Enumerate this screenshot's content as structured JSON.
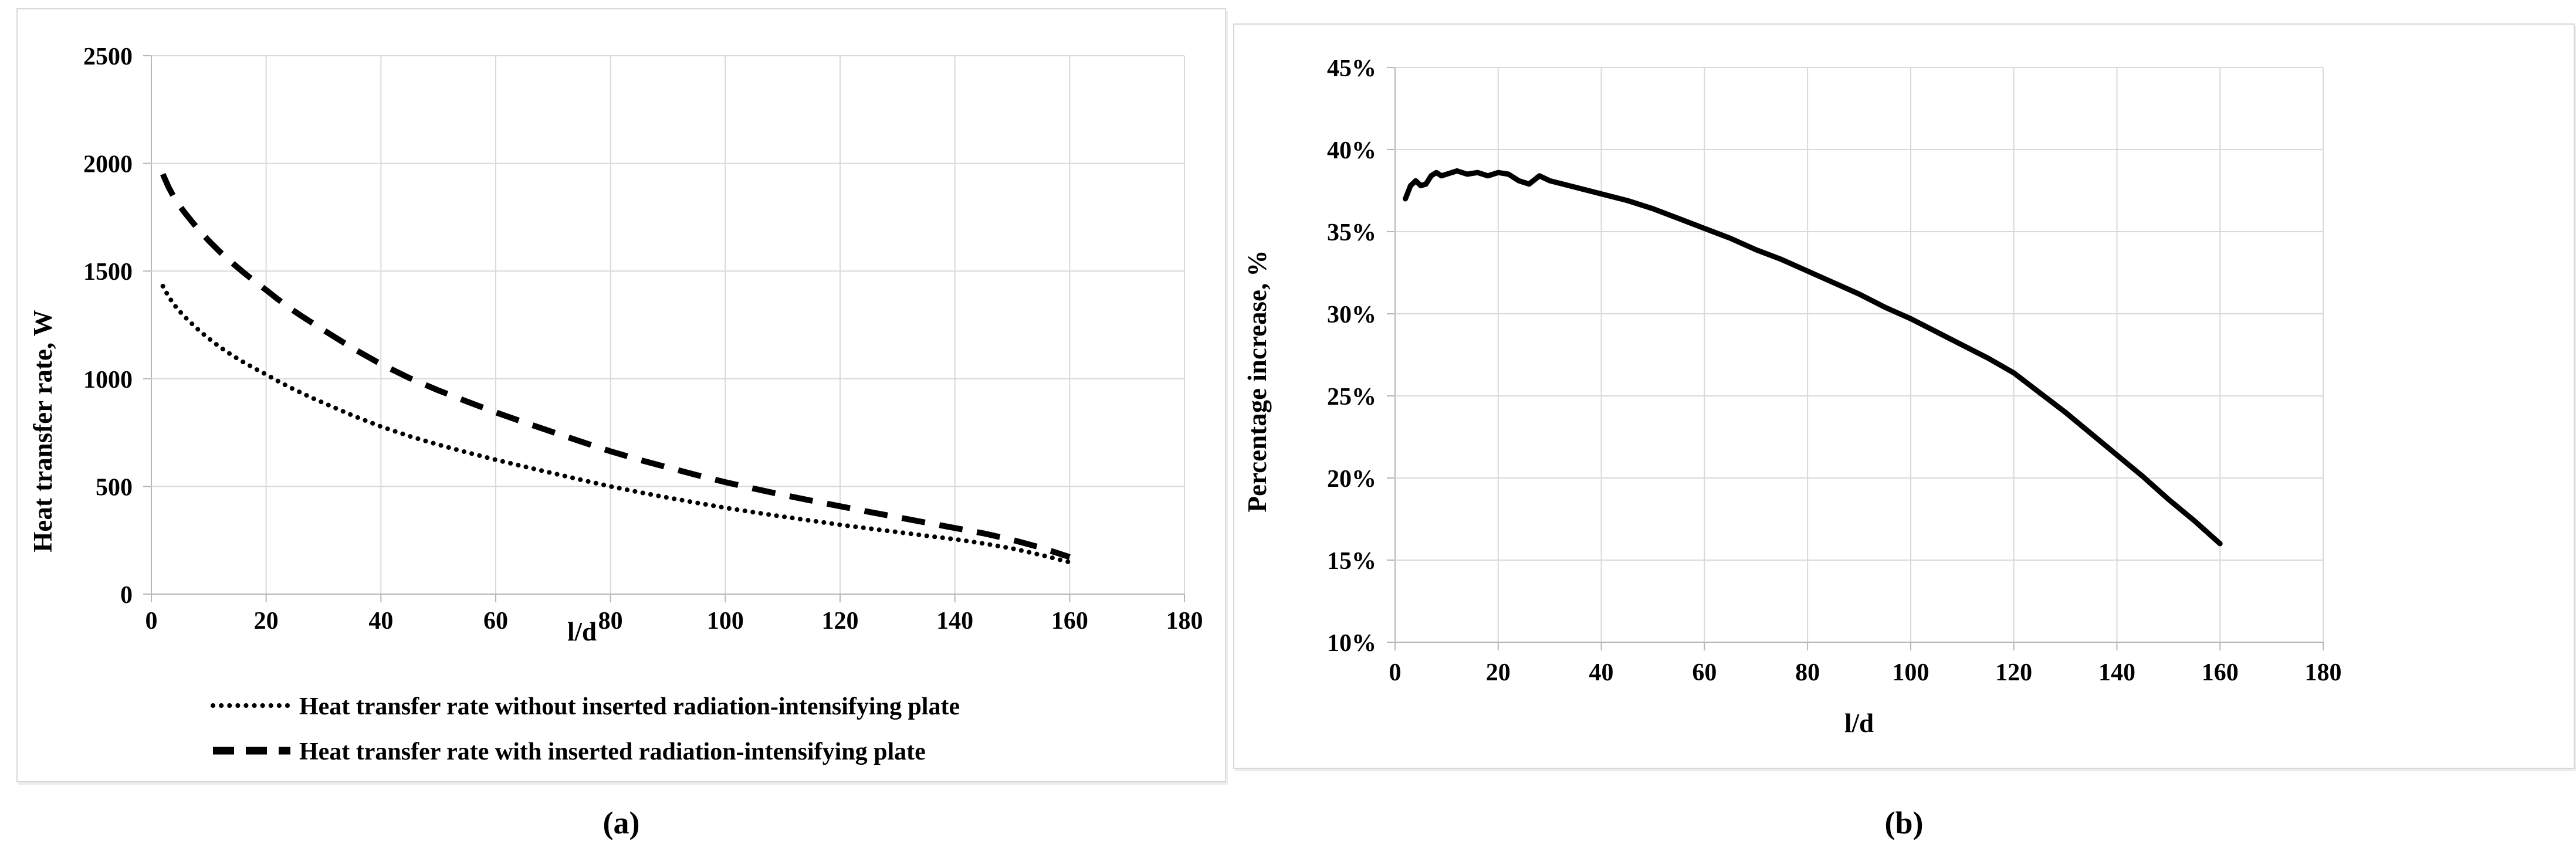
{
  "figure": {
    "background": "#ffffff",
    "panel_border_color": "#d9d9d9",
    "gridline_color": "#d9d9d9",
    "axis_color": "#b7b7b7",
    "text_color": "#000000",
    "series_color": "#000000",
    "caption_a": "(a)",
    "caption_b": "(b)"
  },
  "chart_data": [
    {
      "id": "a",
      "type": "line",
      "title": "",
      "xlabel": "l/d",
      "ylabel": "Heat transfer rate, W",
      "xlim": [
        0,
        180
      ],
      "ylim": [
        0,
        2500
      ],
      "grid": true,
      "legend_position": "bottom",
      "x_ticks": [
        0,
        20,
        40,
        60,
        80,
        100,
        120,
        140,
        160,
        180
      ],
      "x_tick_labels": [
        "0",
        "20",
        "40",
        "60",
        "80",
        "100",
        "120",
        "140",
        "160",
        "180"
      ],
      "y_ticks": [
        0,
        500,
        1000,
        1500,
        2000,
        2500
      ],
      "y_tick_labels": [
        "0",
        "500",
        "1000",
        "1500",
        "2000",
        "2500"
      ],
      "x": [
        2,
        3,
        4,
        5,
        6,
        7,
        8,
        9,
        10,
        12,
        14,
        16,
        18,
        20,
        22,
        24,
        26,
        28,
        30,
        35,
        40,
        45,
        50,
        55,
        60,
        65,
        70,
        75,
        80,
        85,
        90,
        95,
        100,
        105,
        110,
        115,
        120,
        125,
        130,
        135,
        140,
        145,
        150,
        155,
        160
      ],
      "series": [
        {
          "name": "Heat transfer rate without inserted radiation-intensifying plate",
          "line_style": "dotted",
          "color": "#000000",
          "values": [
            1430,
            1382,
            1343,
            1311,
            1283,
            1257,
            1232,
            1209,
            1187,
            1146,
            1110,
            1078,
            1048,
            1020,
            990,
            962,
            936,
            911,
            888,
            830,
            778,
            733,
            694,
            658,
            624,
            592,
            561,
            530,
            500,
            473,
            448,
            424,
            401,
            380,
            360,
            341,
            322,
            305,
            288,
            271,
            255,
            235,
            212,
            182,
            148
          ]
        },
        {
          "name": "Heat transfer rate with inserted radiation-intensifying plate",
          "line_style": "dashed",
          "color": "#000000",
          "values": [
            1950,
            1890,
            1840,
            1800,
            1765,
            1732,
            1700,
            1670,
            1641,
            1588,
            1540,
            1495,
            1452,
            1412,
            1370,
            1330,
            1294,
            1260,
            1226,
            1143,
            1068,
            1003,
            946,
            894,
            844,
            797,
            752,
            707,
            663,
            624,
            588,
            553,
            520,
            490,
            461,
            434,
            408,
            382,
            357,
            332,
            307,
            282,
            252,
            216,
            172
          ]
        }
      ]
    },
    {
      "id": "b",
      "type": "line",
      "title": "",
      "xlabel": "l/d",
      "ylabel": "Percentage increase, %",
      "xlim": [
        0,
        180
      ],
      "ylim": [
        10,
        45
      ],
      "grid": true,
      "legend_position": "none",
      "x_ticks": [
        0,
        20,
        40,
        60,
        80,
        100,
        120,
        140,
        160,
        180
      ],
      "x_tick_labels": [
        "0",
        "20",
        "40",
        "60",
        "80",
        "100",
        "120",
        "140",
        "160",
        "180"
      ],
      "y_ticks": [
        10,
        15,
        20,
        25,
        30,
        35,
        40,
        45
      ],
      "y_tick_labels": [
        "10%",
        "15%",
        "20%",
        "25%",
        "30%",
        "35%",
        "40%",
        "45%"
      ],
      "x": [
        2,
        3,
        4,
        5,
        6,
        7,
        8,
        9,
        10,
        12,
        14,
        16,
        18,
        20,
        22,
        24,
        26,
        28,
        30,
        35,
        40,
        45,
        50,
        55,
        60,
        65,
        70,
        75,
        80,
        85,
        90,
        95,
        100,
        105,
        110,
        115,
        120,
        125,
        130,
        135,
        140,
        145,
        150,
        155,
        160
      ],
      "series": [
        {
          "name": "Percentage increase",
          "line_style": "solid",
          "color": "#000000",
          "values": [
            37.0,
            37.8,
            38.1,
            37.8,
            37.9,
            38.4,
            38.6,
            38.4,
            38.5,
            38.7,
            38.5,
            38.6,
            38.4,
            38.6,
            38.5,
            38.1,
            37.9,
            38.4,
            38.1,
            37.7,
            37.3,
            36.9,
            36.4,
            35.8,
            35.2,
            34.6,
            33.9,
            33.3,
            32.6,
            31.9,
            31.2,
            30.4,
            29.7,
            28.9,
            28.1,
            27.3,
            26.4,
            25.2,
            24.0,
            22.7,
            21.4,
            20.1,
            18.7,
            17.4,
            16.0
          ]
        }
      ]
    }
  ]
}
